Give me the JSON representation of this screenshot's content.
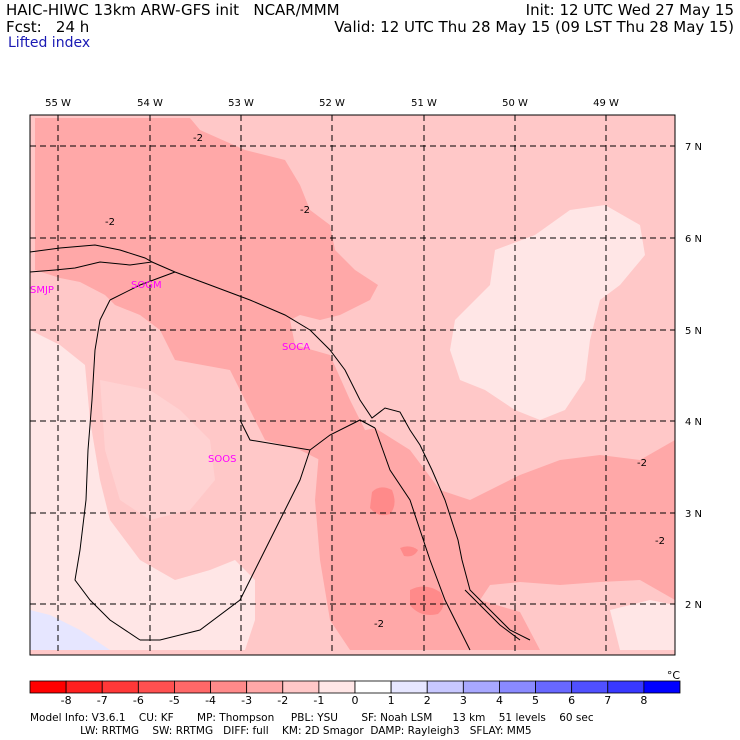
{
  "header": {
    "line1_left": "HAIC-HIWC 13km ARW-GFS init   NCAR/MMM",
    "line1_right": "Init: 12 UTC Wed 27 May 15",
    "line2_left": "Fcst:   24 h",
    "line2_right": "Valid: 12 UTC Thu 28 May 15 (09 LST Thu 28 May 15)",
    "field": "Lifted index"
  },
  "longitudes": [
    "55 W",
    "54 W",
    "53 W",
    "52 W",
    "51 W",
    "50 W",
    "49 W"
  ],
  "latitudes": [
    "7 N",
    "6 N",
    "5 N",
    "4 N",
    "3 N",
    "2 N"
  ],
  "stations": [
    "SMJP",
    "SOGM",
    "SOCA",
    "SOOS"
  ],
  "contour_label": "-2",
  "colorbar": {
    "ticks": [
      "-8",
      "-7",
      "-6",
      "-5",
      "-4",
      "-3",
      "-2",
      "-1",
      "0",
      "1",
      "2",
      "3",
      "4",
      "5",
      "6",
      "7",
      "8"
    ],
    "unit": "°C",
    "colors": [
      "#ff0000",
      "#ff2020",
      "#ff3838",
      "#ff5050",
      "#ff6868",
      "#ff8a8a",
      "#ffa8a8",
      "#ffc8c8",
      "#ffe6e6",
      "#ffffff",
      "#e6e6ff",
      "#c8c8ff",
      "#a8a8ff",
      "#8a8aff",
      "#6868ff",
      "#5050ff",
      "#3838ff",
      "#0000ff"
    ]
  },
  "footer": {
    "line1": "Model Info: V3.6.1    CU: KF       MP: Thompson     PBL: YSU       SF: Noah LSM      13 km    51 levels    60 sec",
    "line2": "               LW: RRTMG    SW: RRTMG   DIFF: full    KM: 2D Smagor  DAMP: Rayleigh3   SFLAY: MM5"
  }
}
